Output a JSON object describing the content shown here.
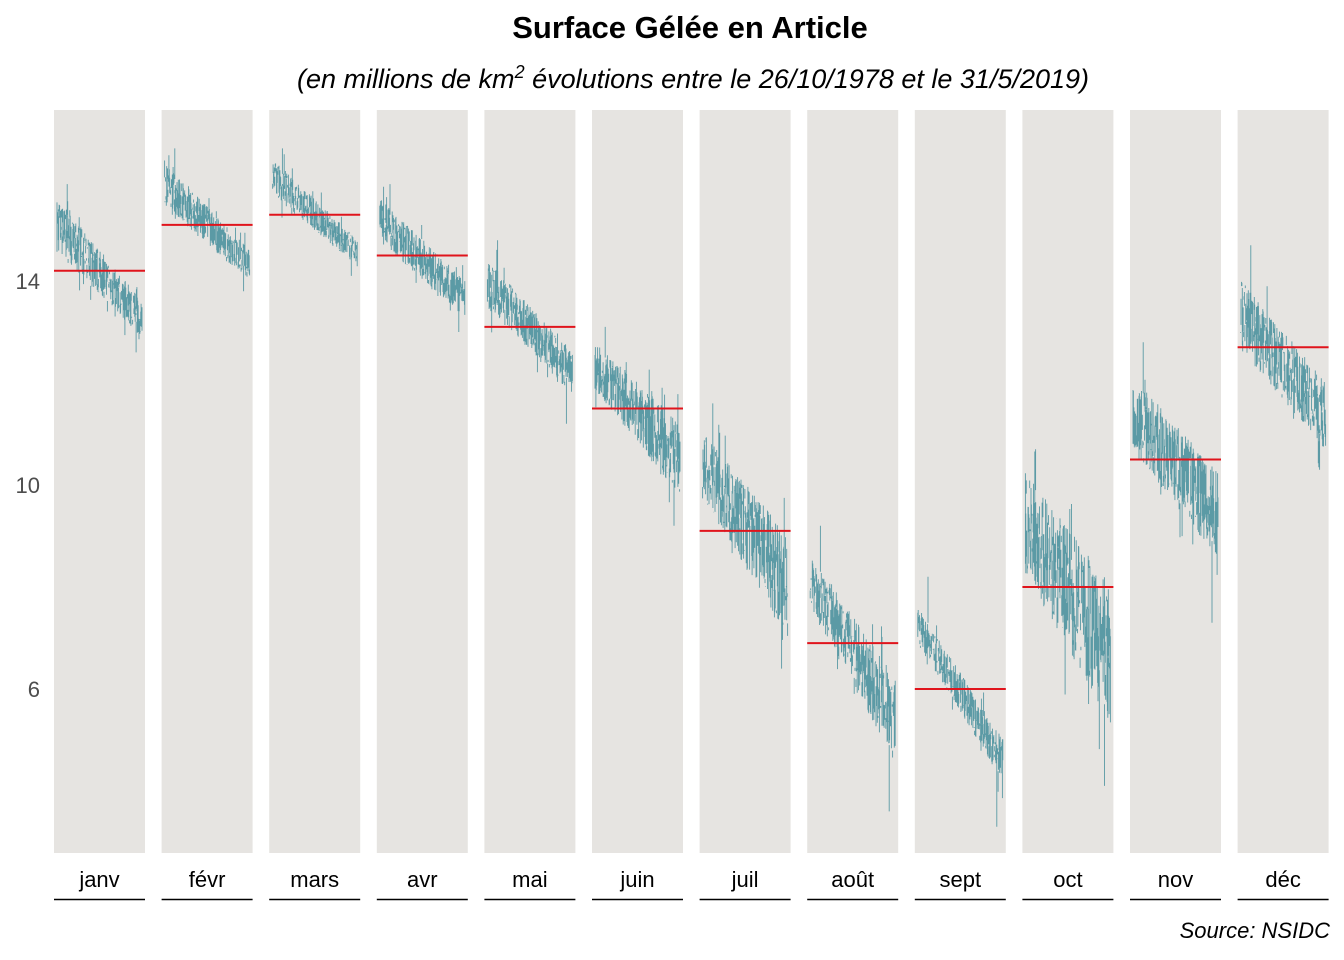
{
  "chart_data": {
    "type": "line",
    "title": "Surface Gélée en Article",
    "subtitle": {
      "before": "(en millions de km",
      "superscript": "2",
      "after": " évolutions entre le 26/10/1978 et le 31/5/2019)"
    },
    "source": "Source: NSIDC",
    "y_ticks": [
      6,
      10,
      14
    ],
    "ylim": [
      2.7,
      17.2
    ],
    "grid": false,
    "colors": {
      "series": "#5b9aa5",
      "mean": "#e0141c",
      "panel": "#e6e4e1"
    },
    "panels": [
      {
        "month": "janv",
        "mean": 14.2,
        "start_hi": 15.6,
        "start_lo": 14.6,
        "end_hi": 13.6,
        "end_lo": 12.9,
        "max": 15.9,
        "min": 12.6
      },
      {
        "month": "févr",
        "mean": 15.1,
        "start_hi": 16.3,
        "start_lo": 15.5,
        "end_hi": 14.6,
        "end_lo": 14.0,
        "max": 16.6,
        "min": 13.8
      },
      {
        "month": "mars",
        "mean": 15.3,
        "start_hi": 16.4,
        "start_lo": 15.7,
        "end_hi": 14.8,
        "end_lo": 14.3,
        "max": 16.6,
        "min": 14.1
      },
      {
        "month": "avr",
        "mean": 14.5,
        "start_hi": 15.6,
        "start_lo": 14.8,
        "end_hi": 14.0,
        "end_lo": 13.3,
        "max": 15.9,
        "min": 13.0
      },
      {
        "month": "mai",
        "mean": 13.1,
        "start_hi": 14.4,
        "start_lo": 13.5,
        "end_hi": 12.6,
        "end_lo": 11.8,
        "max": 14.8,
        "min": 11.2
      },
      {
        "month": "juin",
        "mean": 11.5,
        "start_hi": 12.8,
        "start_lo": 11.9,
        "end_hi": 11.2,
        "end_lo": 9.8,
        "max": 13.1,
        "min": 9.2
      },
      {
        "month": "juil",
        "mean": 9.1,
        "start_hi": 11.0,
        "start_lo": 9.8,
        "end_hi": 9.0,
        "end_lo": 7.0,
        "max": 11.6,
        "min": 6.4
      },
      {
        "month": "août",
        "mean": 6.9,
        "start_hi": 8.6,
        "start_lo": 7.6,
        "end_hi": 6.2,
        "end_lo": 4.6,
        "max": 9.2,
        "min": 3.6
      },
      {
        "month": "sept",
        "mean": 6.0,
        "start_hi": 7.6,
        "start_lo": 6.9,
        "end_hi": 5.0,
        "end_lo": 4.2,
        "max": 8.2,
        "min": 3.3
      },
      {
        "month": "oct",
        "mean": 8.0,
        "start_hi": 10.2,
        "start_lo": 8.3,
        "end_hi": 8.0,
        "end_lo": 5.4,
        "max": 10.7,
        "min": 4.1
      },
      {
        "month": "nov",
        "mean": 10.5,
        "start_hi": 12.1,
        "start_lo": 10.7,
        "end_hi": 10.2,
        "end_lo": 8.6,
        "max": 12.8,
        "min": 7.3
      },
      {
        "month": "déc",
        "mean": 12.7,
        "start_hi": 14.0,
        "start_lo": 12.7,
        "end_hi": 12.0,
        "end_lo": 10.7,
        "max": 14.7,
        "min": 10.3
      }
    ]
  }
}
